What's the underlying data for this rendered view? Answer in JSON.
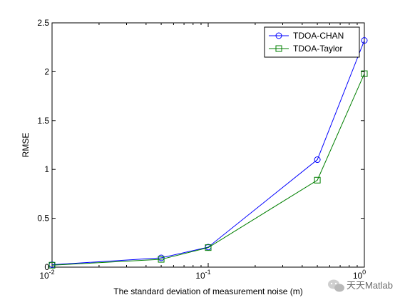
{
  "chart_data": {
    "type": "line",
    "xscale": "log",
    "x": [
      0.01,
      0.05,
      0.1,
      0.5,
      1
    ],
    "xlim": [
      0.01,
      1
    ],
    "ylim": [
      0,
      2.5
    ],
    "xticks": [
      0.01,
      0.1,
      1
    ],
    "xtick_labels": [
      {
        "base": "10",
        "exp": "-2"
      },
      {
        "base": "10",
        "exp": "-1"
      },
      {
        "base": "10",
        "exp": "0"
      }
    ],
    "yticks": [
      0,
      0.5,
      1,
      1.5,
      2,
      2.5
    ],
    "ytick_labels": [
      "0",
      "0.5",
      "1",
      "1.5",
      "2",
      "2.5"
    ],
    "xlabel": "The standard deviation of measurement noise (m)",
    "ylabel": "RMSE",
    "grid": false,
    "legend_position": "top-right",
    "series": [
      {
        "name": "TDOA-CHAN",
        "values": [
          0.025,
          0.095,
          0.205,
          1.1,
          2.32
        ],
        "color": "#0000ff",
        "marker": "circle"
      },
      {
        "name": "TDOA-Taylor",
        "values": [
          0.02,
          0.08,
          0.2,
          0.89,
          1.98
        ],
        "color": "#007f00",
        "marker": "square"
      }
    ]
  },
  "watermark": {
    "text": "天天Matlab",
    "icon": "wechat-icon"
  }
}
